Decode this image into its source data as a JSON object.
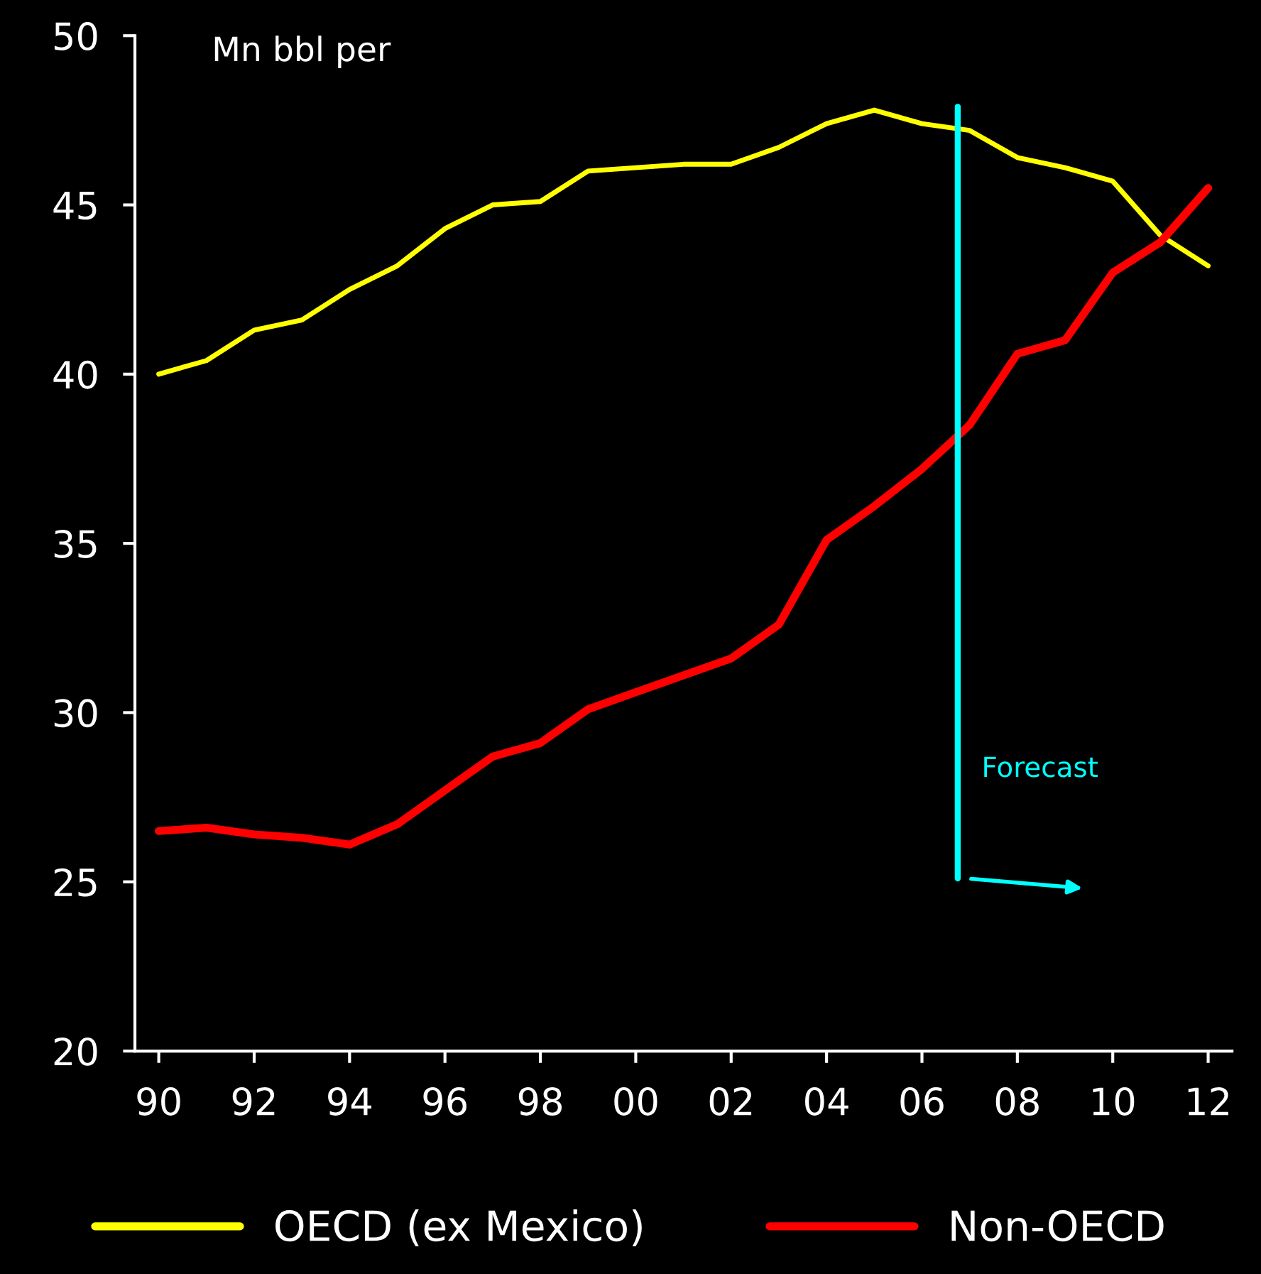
{
  "chart_data": {
    "type": "line",
    "ylabel": "Mn bbl per",
    "x": [
      1990,
      1991,
      1992,
      1993,
      1994,
      1995,
      1996,
      1997,
      1998,
      1999,
      2000,
      2001,
      2002,
      2003,
      2004,
      2005,
      2006,
      2007,
      2008,
      2009,
      2010,
      2011,
      2012
    ],
    "series": [
      {
        "name": "OECD (ex Mexico)",
        "color": "#ffff00",
        "values": [
          40.0,
          40.4,
          41.3,
          41.6,
          42.5,
          43.2,
          44.3,
          45.0,
          45.1,
          46.0,
          46.1,
          46.2,
          46.2,
          46.7,
          47.4,
          47.8,
          47.4,
          47.2,
          46.4,
          46.1,
          45.7,
          44.1,
          43.2
        ]
      },
      {
        "name": "Non-OECD",
        "color": "#ff0000",
        "values": [
          26.5,
          26.6,
          26.4,
          26.3,
          26.1,
          26.7,
          27.7,
          28.7,
          29.1,
          30.1,
          30.6,
          31.1,
          31.6,
          32.6,
          35.1,
          36.1,
          37.2,
          38.5,
          40.6,
          41.0,
          43.0,
          43.9,
          45.5
        ]
      }
    ],
    "xlim": [
      1989.5,
      2012.5
    ],
    "xticks": [
      {
        "value": 1990,
        "label": "90"
      },
      {
        "value": 1992,
        "label": "92"
      },
      {
        "value": 1994,
        "label": "94"
      },
      {
        "value": 1996,
        "label": "96"
      },
      {
        "value": 1998,
        "label": "98"
      },
      {
        "value": 2000,
        "label": "00"
      },
      {
        "value": 2002,
        "label": "02"
      },
      {
        "value": 2004,
        "label": "04"
      },
      {
        "value": 2006,
        "label": "06"
      },
      {
        "value": 2008,
        "label": "08"
      },
      {
        "value": 2010,
        "label": "10"
      },
      {
        "value": 2012,
        "label": "12"
      }
    ],
    "ylim": [
      20,
      50
    ],
    "yticks": [
      20,
      25,
      30,
      35,
      40,
      45,
      50
    ],
    "ref_lines": [
      {
        "axis": "x",
        "value": 2006.75,
        "label": "Forecast",
        "color": "#00ffff"
      }
    ],
    "legend": "bottom",
    "grid": false,
    "marker": "none",
    "line_style": "solid"
  }
}
